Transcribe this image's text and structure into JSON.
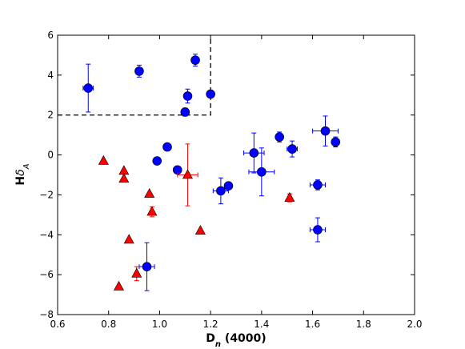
{
  "chart_data": {
    "type": "scatter",
    "xlabel": "D",
    "xlabel_sub": "n",
    "xlabel_suffix": " (4000)",
    "ylabel": "H",
    "ylabel_sym": "δ",
    "ylabel_sub": "A",
    "xlim": [
      0.6,
      2.0
    ],
    "ylim": [
      -8,
      6
    ],
    "xticks": [
      0.6,
      0.8,
      1.0,
      1.2,
      1.4,
      1.6,
      1.8,
      2.0
    ],
    "xtick_labels": [
      "0.6",
      "0.8",
      "1.0",
      "1.2",
      "1.4",
      "1.6",
      "1.8",
      "2.0"
    ],
    "yticks": [
      -8,
      -6,
      -4,
      -2,
      0,
      2,
      4,
      6
    ],
    "ytick_labels": [
      "−8",
      "−6",
      "−4",
      "−2",
      "0",
      "2",
      "4",
      "6"
    ],
    "grid": false,
    "dashed_boundary": [
      [
        0.6,
        2.0
      ],
      [
        1.2,
        2.0
      ],
      [
        1.2,
        6.0
      ]
    ],
    "series": [
      {
        "marker": "circle",
        "color": "#0000ff",
        "points": [
          {
            "x": 0.72,
            "y": 3.35,
            "xerr": 0.02,
            "yerr": 1.2
          },
          {
            "x": 0.92,
            "y": 4.2,
            "xerr": 0.0,
            "yerr": 0.3
          },
          {
            "x": 1.14,
            "y": 4.75,
            "xerr": 0.0,
            "yerr": 0.3
          },
          {
            "x": 1.11,
            "y": 2.95,
            "xerr": 0.0,
            "yerr": 0.35
          },
          {
            "x": 1.2,
            "y": 3.05,
            "xerr": 0.0,
            "yerr": 0.0
          },
          {
            "x": 1.1,
            "y": 2.15,
            "xerr": 0.0,
            "yerr": 0.2
          },
          {
            "x": 1.03,
            "y": 0.4,
            "xerr": 0.0,
            "yerr": 0.0
          },
          {
            "x": 0.99,
            "y": -0.3,
            "xerr": 0.0,
            "yerr": 0.0
          },
          {
            "x": 1.07,
            "y": -0.75,
            "xerr": 0.0,
            "yerr": 0.0
          },
          {
            "x": 1.24,
            "y": -1.8,
            "xerr": 0.03,
            "yerr": 0.65
          },
          {
            "x": 1.27,
            "y": -1.55,
            "xerr": 0.0,
            "yerr": 0.0
          },
          {
            "x": 1.37,
            "y": 0.1,
            "xerr": 0.04,
            "yerr": 1.0
          },
          {
            "x": 1.4,
            "y": -0.85,
            "xerr": 0.05,
            "yerr": 1.2
          },
          {
            "x": 1.47,
            "y": 0.9,
            "xerr": 0.0,
            "yerr": 0.25
          },
          {
            "x": 1.52,
            "y": 0.3,
            "xerr": 0.02,
            "yerr": 0.4
          },
          {
            "x": 1.62,
            "y": -1.5,
            "xerr": 0.03,
            "yerr": 0.25
          },
          {
            "x": 1.62,
            "y": -3.75,
            "xerr": 0.03,
            "yerr": 0.6
          },
          {
            "x": 1.65,
            "y": 1.2,
            "xerr": 0.05,
            "yerr": 0.75
          },
          {
            "x": 1.69,
            "y": 0.65,
            "xerr": 0.0,
            "yerr": 0.25
          },
          {
            "x": 0.95,
            "y": -5.6,
            "xerr": 0.03,
            "yerr": 1.2
          }
        ]
      },
      {
        "marker": "triangle",
        "color": "#ff0000",
        "points": [
          {
            "x": 0.78,
            "y": -0.3,
            "xerr": 0.0,
            "yerr": 0.0
          },
          {
            "x": 0.86,
            "y": -0.8,
            "xerr": 0.0,
            "yerr": 0.0
          },
          {
            "x": 0.86,
            "y": -1.2,
            "xerr": 0.0,
            "yerr": 0.0
          },
          {
            "x": 0.96,
            "y": -1.95,
            "xerr": 0.0,
            "yerr": 0.0
          },
          {
            "x": 0.97,
            "y": -2.85,
            "xerr": 0.0,
            "yerr": 0.25
          },
          {
            "x": 0.88,
            "y": -4.25,
            "xerr": 0.0,
            "yerr": 0.0
          },
          {
            "x": 0.91,
            "y": -5.95,
            "xerr": 0.0,
            "yerr": 0.35
          },
          {
            "x": 0.84,
            "y": -6.6,
            "xerr": 0.0,
            "yerr": 0.0
          },
          {
            "x": 1.11,
            "y": -1.0,
            "xerr": 0.04,
            "yerr": 1.55
          },
          {
            "x": 1.16,
            "y": -3.8,
            "xerr": 0.0,
            "yerr": 0.0
          },
          {
            "x": 1.51,
            "y": -2.15,
            "xerr": 0.0,
            "yerr": 0.2
          }
        ]
      }
    ]
  }
}
